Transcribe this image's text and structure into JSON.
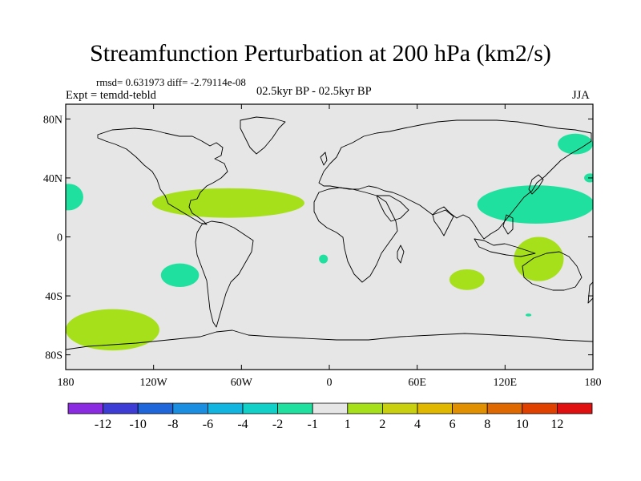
{
  "title": "Streamfunction Perturbation at 200 hPa (km2/s)",
  "rmsd_line": "rmsd= 0.631973 diff= -2.79114e-08",
  "experiment": "Expt = temdd-tebld",
  "period": "02.5kyr BP - 02.5kyr BP",
  "season": "JJA",
  "map": {
    "projection": "cylindrical-equidistant",
    "lon_range": [
      -180,
      180
    ],
    "lat_range": [
      -90,
      90
    ],
    "background_color": "#e6e6e6",
    "coastline_color": "#000000",
    "lat_ticks": [
      {
        "value": 80,
        "label": "80N"
      },
      {
        "value": 40,
        "label": "40N"
      },
      {
        "value": 0,
        "label": "0"
      },
      {
        "value": -40,
        "label": "40S"
      },
      {
        "value": -80,
        "label": "80S"
      }
    ],
    "lon_ticks": [
      {
        "value": -180,
        "label": "180"
      },
      {
        "value": -120,
        "label": "120W"
      },
      {
        "value": -60,
        "label": "60W"
      },
      {
        "value": 0,
        "label": "0"
      },
      {
        "value": 60,
        "label": "60E"
      },
      {
        "value": 120,
        "label": "120E"
      },
      {
        "value": 180,
        "label": "180"
      }
    ]
  },
  "colorbar": {
    "colors": [
      "#8a2be2",
      "#3d3dd6",
      "#1e66d9",
      "#1a8ee0",
      "#12b4e0",
      "#10d0c8",
      "#20e0a0",
      "#e6e6e6",
      "#a6e01a",
      "#c8d010",
      "#e0b800",
      "#e09000",
      "#e06800",
      "#e04000",
      "#e01010"
    ],
    "labels": [
      "-12",
      "-10",
      "-8",
      "-6",
      "-4",
      "-2",
      "-1",
      "1",
      "2",
      "4",
      "6",
      "8",
      "10",
      "12"
    ]
  },
  "chart_data": {
    "type": "heatmap",
    "title": "Streamfunction Perturbation at 200 hPa (km2/s)",
    "variable": "streamfunction perturbation",
    "level": "200 hPa",
    "units": "km2/s",
    "season": "JJA",
    "value_bins": [
      "< -12",
      "-12 to -10",
      "-10 to -8",
      "-8 to -6",
      "-6 to -4",
      "-4 to -2",
      "-2 to -1",
      "-1 to 1",
      "1 to 2",
      "2 to 4",
      "4 to 6",
      "6 to 8",
      "8 to 10",
      "10 to 12",
      "> 12"
    ],
    "anomaly_regions": [
      {
        "bin": "-2 to -1",
        "color": "#20e0a0",
        "lon_center": -178,
        "lat_center": 27,
        "lon_halfwidth": 10,
        "lat_halfwidth": 9
      },
      {
        "bin": "1 to 2",
        "color": "#a6e01a",
        "lon_center": -69,
        "lat_center": 23,
        "lon_halfwidth": 52,
        "lat_halfwidth": 10
      },
      {
        "bin": "-2 to -1",
        "color": "#20e0a0",
        "lon_center": 141,
        "lat_center": 22,
        "lon_halfwidth": 40,
        "lat_halfwidth": 13
      },
      {
        "bin": "-2 to -1",
        "color": "#20e0a0",
        "lon_center": 168,
        "lat_center": 63,
        "lon_halfwidth": 12,
        "lat_halfwidth": 7
      },
      {
        "bin": "-2 to -1",
        "color": "#20e0a0",
        "lon_center": -102,
        "lat_center": -26,
        "lon_halfwidth": 13,
        "lat_halfwidth": 8
      },
      {
        "bin": "-2 to -1",
        "color": "#20e0a0",
        "lon_center": -4,
        "lat_center": -15,
        "lon_halfwidth": 3,
        "lat_halfwidth": 3
      },
      {
        "bin": "1 to 2",
        "color": "#a6e01a",
        "lon_center": 94,
        "lat_center": -29,
        "lon_halfwidth": 12,
        "lat_halfwidth": 7
      },
      {
        "bin": "1 to 2",
        "color": "#a6e01a",
        "lon_center": 143,
        "lat_center": -15,
        "lon_halfwidth": 17,
        "lat_halfwidth": 15
      },
      {
        "bin": "1 to 2",
        "color": "#a6e01a",
        "lon_center": -148,
        "lat_center": -63,
        "lon_halfwidth": 32,
        "lat_halfwidth": 14
      },
      {
        "bin": "-2 to -1",
        "color": "#20e0a0",
        "lon_center": 178,
        "lat_center": 40,
        "lon_halfwidth": 4,
        "lat_halfwidth": 3
      },
      {
        "bin": "-2 to -1",
        "color": "#20e0a0",
        "lon_center": 136,
        "lat_center": -53,
        "lon_halfwidth": 2,
        "lat_halfwidth": 1
      }
    ]
  }
}
